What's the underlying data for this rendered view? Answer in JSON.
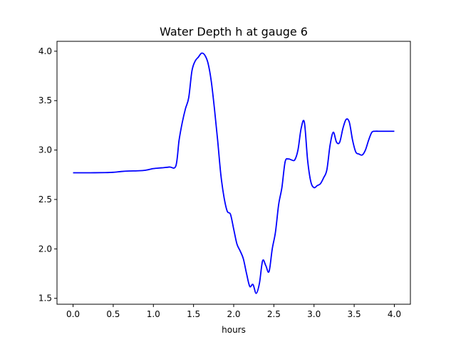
{
  "chart_data": {
    "type": "line",
    "title": "Water Depth h at gauge 6",
    "xlabel": "hours",
    "ylabel": "",
    "xlim": [
      -0.2,
      4.2
    ],
    "ylim": [
      1.44,
      4.1
    ],
    "xticks": [
      0.0,
      0.5,
      1.0,
      1.5,
      2.0,
      2.5,
      3.0,
      3.5,
      4.0
    ],
    "xtick_labels": [
      "0.0",
      "0.5",
      "1.0",
      "1.5",
      "2.0",
      "2.5",
      "3.0",
      "3.5",
      "4.0"
    ],
    "yticks": [
      1.5,
      2.0,
      2.5,
      3.0,
      3.5,
      4.0
    ],
    "ytick_labels": [
      "1.5",
      "2.0",
      "2.5",
      "3.0",
      "3.5",
      "4.0"
    ],
    "grid": false,
    "series": [
      {
        "name": "",
        "color": "#0000ff",
        "x": [
          0.0,
          0.2,
          0.4,
          0.5,
          0.6,
          0.7,
          0.8,
          0.9,
          1.0,
          1.1,
          1.2,
          1.28,
          1.32,
          1.36,
          1.4,
          1.44,
          1.48,
          1.52,
          1.56,
          1.6,
          1.64,
          1.68,
          1.72,
          1.76,
          1.8,
          1.84,
          1.88,
          1.92,
          1.96,
          2.0,
          2.04,
          2.08,
          2.12,
          2.16,
          2.2,
          2.24,
          2.28,
          2.32,
          2.36,
          2.4,
          2.44,
          2.48,
          2.52,
          2.56,
          2.6,
          2.64,
          2.68,
          2.72,
          2.76,
          2.8,
          2.84,
          2.88,
          2.92,
          2.96,
          3.0,
          3.04,
          3.08,
          3.12,
          3.16,
          3.2,
          3.24,
          3.28,
          3.32,
          3.36,
          3.4,
          3.44,
          3.48,
          3.52,
          3.56,
          3.6,
          3.64,
          3.68,
          3.72,
          3.76,
          3.8,
          3.84,
          3.88,
          3.92,
          3.96,
          4.0
        ],
        "y": [
          2.77,
          2.77,
          2.772,
          2.775,
          2.783,
          2.788,
          2.79,
          2.795,
          2.812,
          2.82,
          2.828,
          2.84,
          3.1,
          3.28,
          3.42,
          3.53,
          3.8,
          3.9,
          3.94,
          3.98,
          3.96,
          3.88,
          3.7,
          3.42,
          3.1,
          2.75,
          2.52,
          2.38,
          2.35,
          2.2,
          2.05,
          1.98,
          1.9,
          1.75,
          1.62,
          1.64,
          1.55,
          1.65,
          1.88,
          1.83,
          1.77,
          2.0,
          2.17,
          2.45,
          2.62,
          2.88,
          2.91,
          2.9,
          2.9,
          3.0,
          3.22,
          3.28,
          2.9,
          2.68,
          2.62,
          2.64,
          2.66,
          2.72,
          2.8,
          3.05,
          3.18,
          3.08,
          3.08,
          3.22,
          3.31,
          3.28,
          3.1,
          2.98,
          2.96,
          2.95,
          3.0,
          3.1,
          3.18,
          3.19,
          3.19,
          3.19,
          3.19,
          3.19,
          3.19,
          3.19
        ]
      }
    ]
  }
}
